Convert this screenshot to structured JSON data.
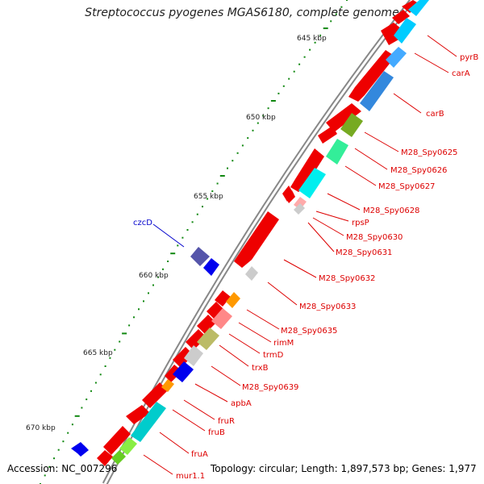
{
  "title": "Streptococcus pyogenes MGAS6180, complete genome",
  "footer": {
    "accession": "Accession: NC_007296",
    "stats": "Topology: circular; Length: 1,897,573 bp; Genes: 1,977"
  },
  "scale_labels": [
    "645 kbp",
    "650 kbp",
    "655 kbp",
    "660 kbp",
    "665 kbp",
    "670 kbp"
  ],
  "genes": [
    {
      "name": "pyrB",
      "color": "#dd0000"
    },
    {
      "name": "carA",
      "color": "#dd0000"
    },
    {
      "name": "carB",
      "color": "#dd0000"
    },
    {
      "name": "M28_Spy0625",
      "color": "#dd0000"
    },
    {
      "name": "M28_Spy0626",
      "color": "#dd0000"
    },
    {
      "name": "M28_Spy0627",
      "color": "#dd0000"
    },
    {
      "name": "M28_Spy0628",
      "color": "#dd0000"
    },
    {
      "name": "rpsP",
      "color": "#dd0000"
    },
    {
      "name": "M28_Spy0630",
      "color": "#dd0000"
    },
    {
      "name": "M28_Spy0631",
      "color": "#dd0000"
    },
    {
      "name": "czcD",
      "color": "#0000cc"
    },
    {
      "name": "M28_Spy0632",
      "color": "#dd0000"
    },
    {
      "name": "M28_Spy0633",
      "color": "#dd0000"
    },
    {
      "name": "M28_Spy0635",
      "color": "#dd0000"
    },
    {
      "name": "rimM",
      "color": "#dd0000"
    },
    {
      "name": "trmD",
      "color": "#dd0000"
    },
    {
      "name": "trxB",
      "color": "#dd0000"
    },
    {
      "name": "M28_Spy0639",
      "color": "#dd0000"
    },
    {
      "name": "apbA",
      "color": "#dd0000"
    },
    {
      "name": "fruR",
      "color": "#dd0000"
    },
    {
      "name": "fruB",
      "color": "#dd0000"
    },
    {
      "name": "fruA",
      "color": "#dd0000"
    },
    {
      "name": "mur1.1",
      "color": "#dd0000"
    }
  ],
  "colors": {
    "backbone": "#888888",
    "forward_gene": "#ee0000",
    "reverse_gene": "#0033ee",
    "tick": "#118811",
    "label_red": "#dd0000",
    "label_blue": "#0000cc"
  }
}
